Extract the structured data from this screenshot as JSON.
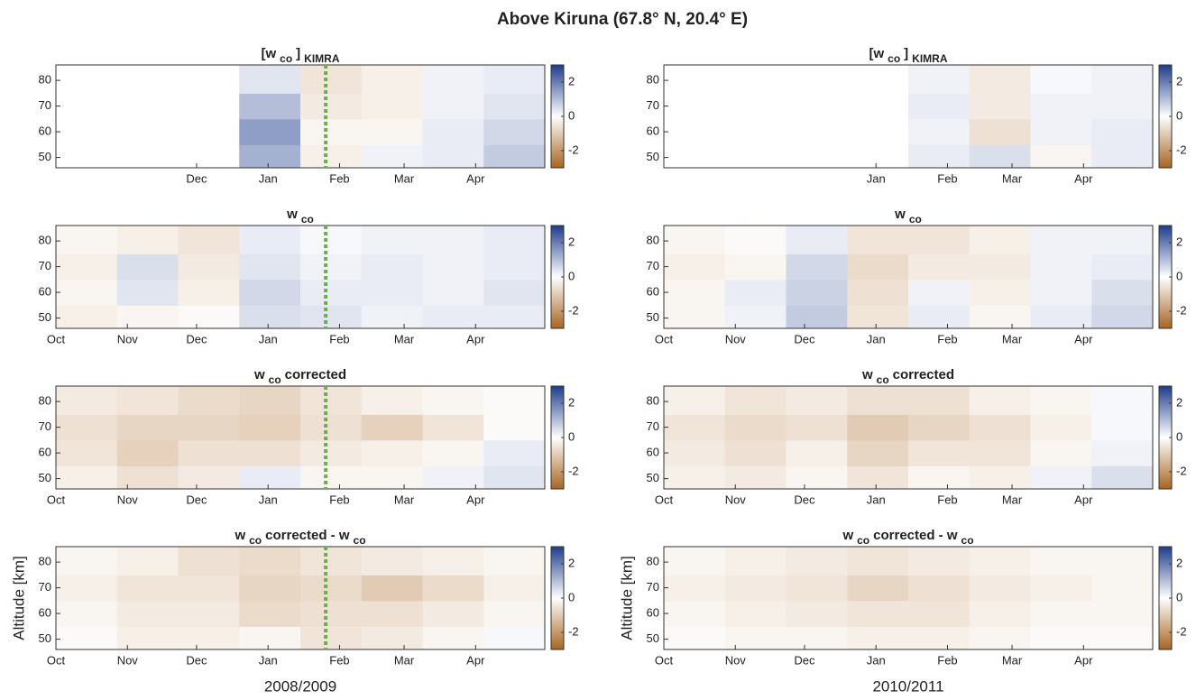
{
  "title": "Above Kiruna (67.8° N, 20.4° E)",
  "chart_data": [
    {
      "type": "heatmap",
      "title": [
        {
          "text": "[w"
        },
        {
          "text": "co",
          "sub": true
        },
        {
          "text": "]"
        },
        {
          "text": "KIMRA",
          "sub": true
        }
      ],
      "x": [
        13,
        40,
        66,
        93,
        119,
        146,
        172,
        199
      ],
      "y": [
        50,
        60,
        70,
        80
      ],
      "z": [
        [
          null,
          null,
          null,
          1.2,
          -0.3,
          0.2,
          0.3,
          0.8
        ],
        [
          null,
          null,
          null,
          1.5,
          -0.2,
          -0.2,
          0.3,
          0.6
        ],
        [
          null,
          null,
          null,
          1.0,
          -0.4,
          -0.3,
          0.2,
          0.4
        ],
        [
          null,
          null,
          null,
          0.4,
          -0.5,
          -0.3,
          0.2,
          0.3
        ]
      ],
      "xlim": [
        0,
        212
      ],
      "ylim": [
        46,
        86
      ],
      "xticks": [
        {
          "value": 61,
          "label": "Dec"
        },
        {
          "value": 92,
          "label": "Jan"
        },
        {
          "value": 123,
          "label": "Feb"
        },
        {
          "value": 151,
          "label": "Mar"
        },
        {
          "value": 182,
          "label": "Apr"
        }
      ],
      "yticks": [
        50,
        60,
        70,
        80
      ],
      "zlim": [
        -3,
        3
      ],
      "zticks": [
        -2,
        0,
        2
      ],
      "colormap": [
        "#a86420",
        "#ffffff",
        "#1e3c8c"
      ],
      "vline": 117,
      "vline_color": "#6ab04c"
    },
    {
      "type": "heatmap",
      "title": [
        {
          "text": "w"
        },
        {
          "text": "co",
          "sub": true
        }
      ],
      "x": [
        13,
        40,
        66,
        93,
        119,
        146,
        172,
        199
      ],
      "y": [
        50,
        60,
        70,
        80
      ],
      "z": [
        [
          -0.3,
          -0.2,
          -0.1,
          0.5,
          0.4,
          0.2,
          0.3,
          0.3
        ],
        [
          -0.2,
          0.4,
          -0.3,
          0.6,
          0.3,
          0.3,
          0.2,
          0.4
        ],
        [
          -0.3,
          0.5,
          -0.4,
          0.4,
          0.2,
          0.3,
          0.2,
          0.3
        ],
        [
          -0.2,
          -0.3,
          -0.5,
          0.3,
          0.1,
          0.2,
          0.2,
          0.3
        ]
      ],
      "xlim": [
        0,
        212
      ],
      "ylim": [
        46,
        86
      ],
      "xticks": [
        {
          "value": 0,
          "label": "Oct"
        },
        {
          "value": 31,
          "label": "Nov"
        },
        {
          "value": 61,
          "label": "Dec"
        },
        {
          "value": 92,
          "label": "Jan"
        },
        {
          "value": 123,
          "label": "Feb"
        },
        {
          "value": 151,
          "label": "Mar"
        },
        {
          "value": 182,
          "label": "Apr"
        }
      ],
      "yticks": [
        50,
        60,
        70,
        80
      ],
      "zlim": [
        -3,
        3
      ],
      "zticks": [
        -2,
        0,
        2
      ],
      "colormap": [
        "#a86420",
        "#ffffff",
        "#1e3c8c"
      ],
      "vline": 117,
      "vline_color": "#6ab04c"
    },
    {
      "type": "heatmap",
      "title": [
        {
          "text": "w"
        },
        {
          "text": "co",
          "sub": true
        },
        {
          "text": "corrected"
        }
      ],
      "x": [
        13,
        40,
        66,
        93,
        119,
        146,
        172,
        199
      ],
      "y": [
        50,
        60,
        70,
        80
      ],
      "z": [
        [
          -0.3,
          -0.6,
          -0.4,
          0.3,
          -0.2,
          -0.2,
          0.2,
          0.4
        ],
        [
          -0.5,
          -0.9,
          -0.6,
          -0.6,
          -0.4,
          -0.3,
          -0.2,
          0.3
        ],
        [
          -0.6,
          -0.8,
          -0.8,
          -0.9,
          -0.6,
          -0.9,
          -0.5,
          -0.1
        ],
        [
          -0.4,
          -0.5,
          -0.7,
          -0.8,
          -0.5,
          -0.3,
          -0.2,
          -0.1
        ]
      ],
      "xlim": [
        0,
        212
      ],
      "ylim": [
        46,
        86
      ],
      "xticks": [
        {
          "value": 0,
          "label": "Oct"
        },
        {
          "value": 31,
          "label": "Nov"
        },
        {
          "value": 61,
          "label": "Dec"
        },
        {
          "value": 92,
          "label": "Jan"
        },
        {
          "value": 123,
          "label": "Feb"
        },
        {
          "value": 151,
          "label": "Mar"
        },
        {
          "value": 182,
          "label": "Apr"
        }
      ],
      "yticks": [
        50,
        60,
        70,
        80
      ],
      "zlim": [
        -3,
        3
      ],
      "zticks": [
        -2,
        0,
        2
      ],
      "colormap": [
        "#a86420",
        "#ffffff",
        "#1e3c8c"
      ],
      "vline": 117,
      "vline_color": "#6ab04c"
    },
    {
      "type": "heatmap",
      "title": [
        {
          "text": "w"
        },
        {
          "text": "co",
          "sub": true
        },
        {
          "text": "corrected - w"
        },
        {
          "text": "co",
          "sub": true
        }
      ],
      "x": [
        13,
        40,
        66,
        93,
        119,
        146,
        172,
        199
      ],
      "y": [
        50,
        60,
        70,
        80
      ],
      "z": [
        [
          -0.1,
          -0.3,
          -0.3,
          -0.2,
          -0.5,
          -0.4,
          -0.2,
          0.1
        ],
        [
          -0.2,
          -0.4,
          -0.4,
          -0.7,
          -0.6,
          -0.6,
          -0.4,
          -0.2
        ],
        [
          -0.3,
          -0.5,
          -0.5,
          -0.8,
          -0.7,
          -1.0,
          -0.7,
          -0.3
        ],
        [
          -0.2,
          -0.3,
          -0.6,
          -0.7,
          -0.5,
          -0.4,
          -0.3,
          -0.2
        ]
      ],
      "xlim": [
        0,
        212
      ],
      "ylim": [
        46,
        86
      ],
      "xticks": [
        {
          "value": 0,
          "label": "Oct"
        },
        {
          "value": 31,
          "label": "Nov"
        },
        {
          "value": 61,
          "label": "Dec"
        },
        {
          "value": 92,
          "label": "Jan"
        },
        {
          "value": 123,
          "label": "Feb"
        },
        {
          "value": 151,
          "label": "Mar"
        },
        {
          "value": 182,
          "label": "Apr"
        }
      ],
      "yticks": [
        50,
        60,
        70,
        80
      ],
      "zlim": [
        -3,
        3
      ],
      "zticks": [
        -2,
        0,
        2
      ],
      "colormap": [
        "#a86420",
        "#ffffff",
        "#1e3c8c"
      ],
      "vline": 117,
      "vline_color": "#6ab04c",
      "xlabel": "2008/2009",
      "ylabel": "Altitude [km]"
    },
    {
      "type": "heatmap",
      "title": [
        {
          "text": "[w"
        },
        {
          "text": "co",
          "sub": true
        },
        {
          "text": "]"
        },
        {
          "text": "KIMRA",
          "sub": true
        }
      ],
      "x": [
        13,
        40,
        66,
        93,
        119,
        146,
        172,
        199
      ],
      "y": [
        50,
        60,
        70,
        80
      ],
      "z": [
        [
          null,
          null,
          null,
          null,
          0.3,
          0.5,
          -0.2,
          0.3
        ],
        [
          null,
          null,
          null,
          null,
          0.2,
          -0.6,
          0.2,
          0.3
        ],
        [
          null,
          null,
          null,
          null,
          0.3,
          -0.4,
          0.2,
          0.2
        ],
        [
          null,
          null,
          null,
          null,
          0.2,
          -0.4,
          0.1,
          0.2
        ]
      ],
      "xlim": [
        0,
        212
      ],
      "ylim": [
        46,
        86
      ],
      "xticks": [
        {
          "value": 92,
          "label": "Jan"
        },
        {
          "value": 123,
          "label": "Feb"
        },
        {
          "value": 151,
          "label": "Mar"
        },
        {
          "value": 182,
          "label": "Apr"
        }
      ],
      "yticks": [
        50,
        60,
        70,
        80
      ],
      "zlim": [
        -3,
        3
      ],
      "zticks": [
        -2,
        0,
        2
      ],
      "colormap": [
        "#a86420",
        "#ffffff",
        "#1e3c8c"
      ]
    },
    {
      "type": "heatmap",
      "title": [
        {
          "text": "w"
        },
        {
          "text": "co",
          "sub": true
        }
      ],
      "x": [
        13,
        40,
        66,
        93,
        119,
        146,
        172,
        199
      ],
      "y": [
        50,
        60,
        70,
        80
      ],
      "z": [
        [
          -0.2,
          0.2,
          0.8,
          -0.5,
          0.3,
          -0.2,
          0.3,
          0.6
        ],
        [
          -0.2,
          0.3,
          0.7,
          -0.6,
          0.2,
          -0.3,
          0.2,
          0.5
        ],
        [
          -0.3,
          -0.2,
          0.6,
          -0.7,
          -0.4,
          -0.4,
          0.2,
          0.3
        ],
        [
          -0.2,
          -0.1,
          0.3,
          -0.5,
          -0.5,
          -0.3,
          0.2,
          0.2
        ]
      ],
      "xlim": [
        0,
        212
      ],
      "ylim": [
        46,
        86
      ],
      "xticks": [
        {
          "value": 0,
          "label": "Oct"
        },
        {
          "value": 31,
          "label": "Nov"
        },
        {
          "value": 61,
          "label": "Dec"
        },
        {
          "value": 92,
          "label": "Jan"
        },
        {
          "value": 123,
          "label": "Feb"
        },
        {
          "value": 151,
          "label": "Mar"
        },
        {
          "value": 182,
          "label": "Apr"
        }
      ],
      "yticks": [
        50,
        60,
        70,
        80
      ],
      "zlim": [
        -3,
        3
      ],
      "zticks": [
        -2,
        0,
        2
      ],
      "colormap": [
        "#a86420",
        "#ffffff",
        "#1e3c8c"
      ]
    },
    {
      "type": "heatmap",
      "title": [
        {
          "text": "w"
        },
        {
          "text": "co",
          "sub": true
        },
        {
          "text": "corrected"
        }
      ],
      "x": [
        13,
        40,
        66,
        93,
        119,
        146,
        172,
        199
      ],
      "y": [
        50,
        60,
        70,
        80
      ],
      "z": [
        [
          -0.3,
          -0.4,
          -0.2,
          -0.5,
          -0.2,
          -0.3,
          0.2,
          0.5
        ],
        [
          -0.4,
          -0.6,
          -0.3,
          -0.8,
          -0.5,
          -0.5,
          -0.2,
          0.2
        ],
        [
          -0.5,
          -0.7,
          -0.6,
          -1.0,
          -0.8,
          -0.6,
          -0.3,
          0.1
        ],
        [
          -0.3,
          -0.5,
          -0.4,
          -0.6,
          -0.6,
          -0.3,
          -0.2,
          0.1
        ]
      ],
      "xlim": [
        0,
        212
      ],
      "ylim": [
        46,
        86
      ],
      "xticks": [
        {
          "value": 0,
          "label": "Oct"
        },
        {
          "value": 31,
          "label": "Nov"
        },
        {
          "value": 61,
          "label": "Dec"
        },
        {
          "value": 92,
          "label": "Jan"
        },
        {
          "value": 123,
          "label": "Feb"
        },
        {
          "value": 151,
          "label": "Mar"
        },
        {
          "value": 182,
          "label": "Apr"
        }
      ],
      "yticks": [
        50,
        60,
        70,
        80
      ],
      "zlim": [
        -3,
        3
      ],
      "zticks": [
        -2,
        0,
        2
      ],
      "colormap": [
        "#a86420",
        "#ffffff",
        "#1e3c8c"
      ]
    },
    {
      "type": "heatmap",
      "title": [
        {
          "text": "w"
        },
        {
          "text": "co",
          "sub": true
        },
        {
          "text": "corrected - w"
        },
        {
          "text": "co",
          "sub": true
        }
      ],
      "x": [
        13,
        40,
        66,
        93,
        119,
        146,
        172,
        199
      ],
      "y": [
        50,
        60,
        70,
        80
      ],
      "z": [
        [
          -0.1,
          -0.2,
          -0.2,
          -0.3,
          -0.3,
          -0.2,
          -0.1,
          -0.1
        ],
        [
          -0.2,
          -0.3,
          -0.4,
          -0.5,
          -0.5,
          -0.3,
          -0.2,
          -0.2
        ],
        [
          -0.3,
          -0.4,
          -0.5,
          -0.8,
          -0.6,
          -0.4,
          -0.3,
          -0.2
        ],
        [
          -0.2,
          -0.3,
          -0.4,
          -0.5,
          -0.4,
          -0.3,
          -0.2,
          -0.2
        ]
      ],
      "xlim": [
        0,
        212
      ],
      "ylim": [
        46,
        86
      ],
      "xticks": [
        {
          "value": 0,
          "label": "Oct"
        },
        {
          "value": 31,
          "label": "Nov"
        },
        {
          "value": 61,
          "label": "Dec"
        },
        {
          "value": 92,
          "label": "Jan"
        },
        {
          "value": 123,
          "label": "Feb"
        },
        {
          "value": 151,
          "label": "Mar"
        },
        {
          "value": 182,
          "label": "Apr"
        }
      ],
      "yticks": [
        50,
        60,
        70,
        80
      ],
      "zlim": [
        -3,
        3
      ],
      "zticks": [
        -2,
        0,
        2
      ],
      "colormap": [
        "#a86420",
        "#ffffff",
        "#1e3c8c"
      ],
      "xlabel": "2010/2011",
      "ylabel": "Altitude [km]"
    }
  ]
}
